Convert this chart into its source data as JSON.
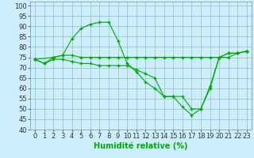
{
  "title": "",
  "xlabel": "Humidité relative (%)",
  "ylabel": "",
  "bg_color": "#cceeff",
  "grid_color": "#99ccbb",
  "line_color": "#00aa00",
  "marker": "+",
  "xlim": [
    -0.5,
    23.5
  ],
  "ylim": [
    40,
    102
  ],
  "yticks": [
    40,
    45,
    50,
    55,
    60,
    65,
    70,
    75,
    80,
    85,
    90,
    95,
    100
  ],
  "xticks": [
    0,
    1,
    2,
    3,
    4,
    5,
    6,
    7,
    8,
    9,
    10,
    11,
    12,
    13,
    14,
    15,
    16,
    17,
    18,
    19,
    20,
    21,
    22,
    23
  ],
  "line1_x": [
    0,
    1,
    2,
    3,
    4,
    5,
    6,
    7,
    8,
    9,
    10,
    11,
    12,
    13,
    14,
    15,
    16,
    17,
    18,
    19,
    20,
    21,
    22,
    23
  ],
  "line1_y": [
    74,
    72,
    75,
    76,
    84,
    89,
    91,
    92,
    92,
    83,
    72,
    68,
    63,
    60,
    56,
    56,
    51,
    47,
    50,
    60,
    75,
    77,
    77,
    78
  ],
  "line2_x": [
    0,
    2,
    3,
    4,
    5,
    6,
    7,
    8,
    9,
    10,
    11,
    12,
    13,
    14,
    15,
    16,
    17,
    18,
    19,
    20,
    21,
    22,
    23
  ],
  "line2_y": [
    74,
    75,
    76,
    76,
    75,
    75,
    75,
    75,
    75,
    75,
    75,
    75,
    75,
    75,
    75,
    75,
    75,
    75,
    75,
    75,
    75,
    77,
    78
  ],
  "line3_x": [
    0,
    1,
    2,
    3,
    4,
    5,
    6,
    7,
    8,
    9,
    10,
    11,
    12,
    13,
    14,
    15,
    16,
    17,
    18,
    19,
    20,
    21,
    22,
    23
  ],
  "line3_y": [
    74,
    72,
    74,
    74,
    73,
    72,
    72,
    71,
    71,
    71,
    71,
    69,
    67,
    65,
    56,
    56,
    56,
    50,
    50,
    61,
    75,
    77,
    77,
    78
  ],
  "xlabel_fontsize": 7,
  "tick_fontsize": 6.0,
  "marker_size": 3,
  "line_width": 0.8
}
